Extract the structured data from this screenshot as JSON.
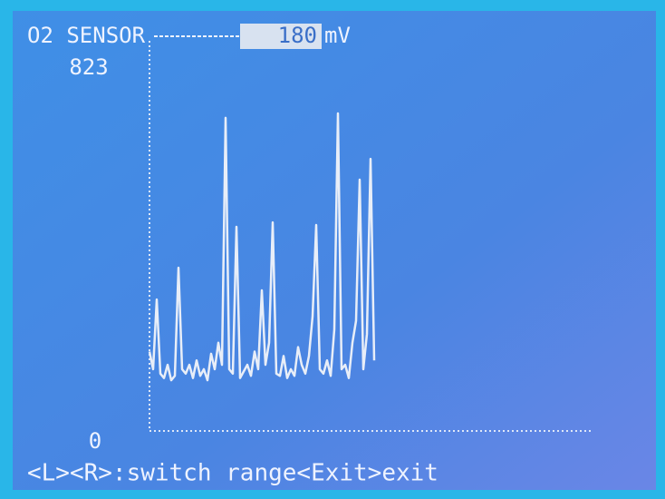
{
  "chart_data": {
    "type": "line",
    "title": "O2 SENSOR",
    "current_value": 180,
    "unit": "mV",
    "footer": "<L><R>:switch range<Exit>exit",
    "ylim": [
      0,
      823
    ],
    "yticks": [
      0,
      823
    ],
    "categories": [
      null,
      null,
      null,
      null,
      null,
      null,
      null,
      null,
      null,
      null,
      null,
      null,
      null,
      null,
      null,
      null,
      null,
      null,
      null,
      null,
      null,
      null,
      null,
      null,
      null,
      null,
      null,
      null,
      null,
      null,
      null,
      null,
      null,
      null,
      null,
      null,
      null,
      null,
      null,
      null,
      null,
      null,
      null,
      null,
      null,
      null,
      null,
      null,
      null,
      null,
      null,
      null,
      null,
      null,
      null,
      null,
      null,
      null,
      null,
      null,
      null,
      null,
      null
    ],
    "series": [
      {
        "color": "#e8eef8",
        "values": [
          180,
          140,
          298,
          130,
          120,
          150,
          115,
          125,
          370,
          140,
          130,
          150,
          120,
          160,
          125,
          140,
          115,
          175,
          140,
          200,
          150,
          710,
          140,
          130,
          463,
          120,
          135,
          150,
          125,
          180,
          140,
          319,
          150,
          200,
          473,
          130,
          125,
          170,
          120,
          140,
          125,
          190,
          150,
          130,
          170,
          260,
          467,
          140,
          130,
          160,
          125,
          230,
          720,
          140,
          150,
          120,
          200,
          250,
          570,
          140,
          220,
          617,
          160
        ]
      }
    ]
  }
}
